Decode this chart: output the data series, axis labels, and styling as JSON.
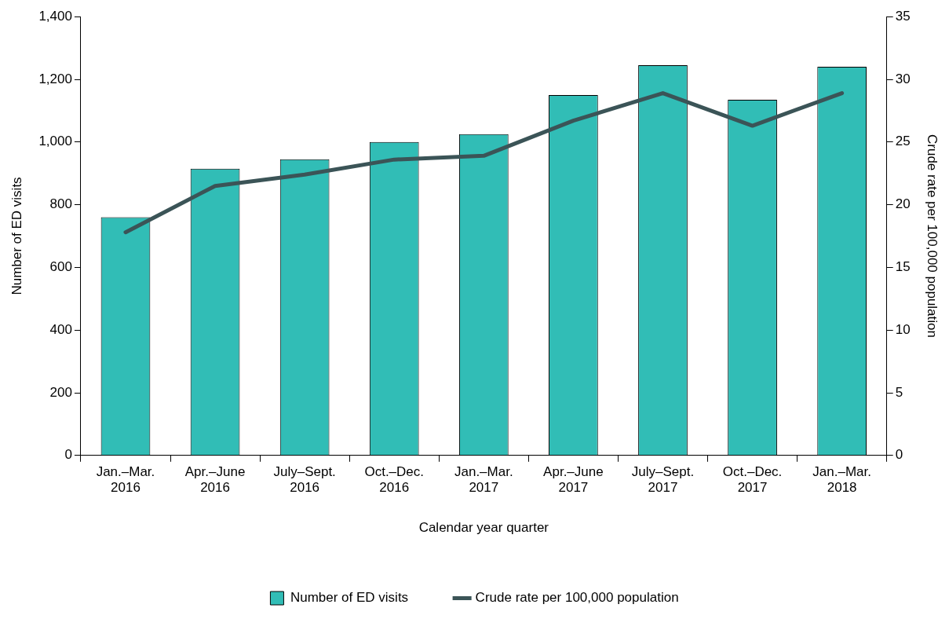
{
  "chart_data": {
    "type": "bar",
    "xlabel": "Calendar year quarter",
    "ylabel": "Number of ED visits",
    "y2label": "Crude rate per 100,000 population",
    "categories": [
      "Jan.–Mar.\n2016",
      "Apr.–June\n2016",
      "July–Sept.\n2016",
      "Oct.–Dec.\n2016",
      "Jan.–Mar.\n2017",
      "Apr.–June\n2017",
      "July–Sept.\n2017",
      "Oct.–Dec.\n2017",
      "Jan.–Mar.\n2018"
    ],
    "series": [
      {
        "name": "Number of ED visits",
        "color": "#31bdb6",
        "values": [
          760,
          915,
          945,
          1000,
          1025,
          1150,
          1245,
          1135,
          1240
        ]
      },
      {
        "name": "Crude rate per 100,000 population",
        "type": "line",
        "axis": "y2",
        "color": "#3b5457",
        "marker": "none",
        "line_style": "solid",
        "values": [
          17.8,
          21.5,
          22.4,
          23.6,
          23.9,
          26.7,
          28.9,
          26.3,
          28.9
        ]
      }
    ],
    "ylim": [
      0,
      1400
    ],
    "yticks": [
      0,
      200,
      400,
      600,
      800,
      {
        "value": 1000,
        "label": "1,000"
      },
      {
        "value": 1200,
        "label": "1,200"
      },
      {
        "value": 1400,
        "label": "1,400"
      }
    ],
    "y2lim": [
      0,
      35
    ],
    "y2ticks": [
      0,
      5,
      10,
      15,
      20,
      25,
      30,
      35
    ],
    "grid": false,
    "legend": "bottom"
  }
}
